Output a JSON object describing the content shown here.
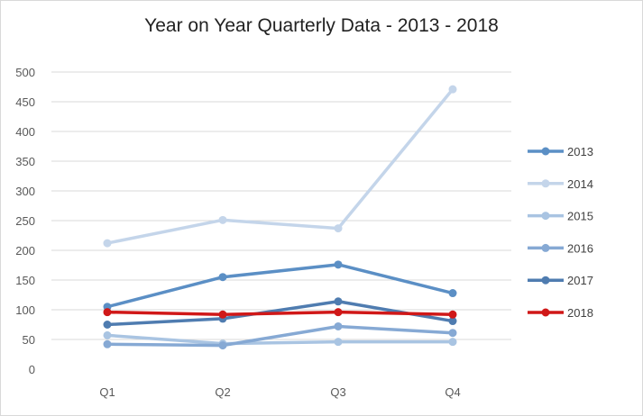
{
  "chart_data": {
    "type": "line",
    "title": "Year on Year Quarterly Data - 2013 - 2018",
    "categories": [
      "Q1",
      "Q2",
      "Q3",
      "Q4"
    ],
    "ylim": [
      0,
      500
    ],
    "yticks": [
      "0",
      "50",
      "100",
      "150",
      "200",
      "250",
      "300",
      "350",
      "400",
      "450",
      "500"
    ],
    "grid": true,
    "legend_position": "right",
    "series": [
      {
        "name": "2013",
        "values": [
          105,
          155,
          176,
          128
        ],
        "color": "#5b8fc5"
      },
      {
        "name": "2014",
        "values": [
          212,
          251,
          237,
          471
        ],
        "color": "#c4d5ea"
      },
      {
        "name": "2015",
        "values": [
          57,
          43,
          46,
          46
        ],
        "color": "#a9c4e2"
      },
      {
        "name": "2016",
        "values": [
          42,
          40,
          72,
          61
        ],
        "color": "#86a9d4"
      },
      {
        "name": "2017",
        "values": [
          75,
          85,
          114,
          81
        ],
        "color": "#4f7cb0"
      },
      {
        "name": "2018",
        "values": [
          96,
          92,
          96,
          92
        ],
        "color": "#d01818"
      }
    ]
  }
}
